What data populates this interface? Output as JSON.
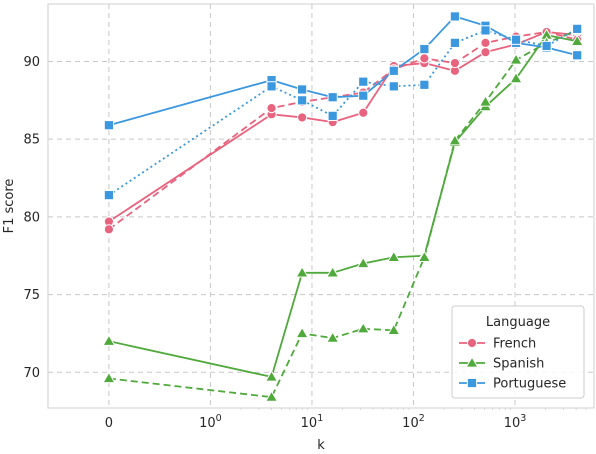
{
  "chart_data": {
    "type": "line",
    "xlabel": "k",
    "ylabel": "F1 score",
    "x_scale": "symlog",
    "xlim": [
      -0.6,
      6000
    ],
    "ylim": [
      67.7,
      93.7
    ],
    "grid": true,
    "x_ticks": [
      {
        "value": 0,
        "label": "0"
      },
      {
        "value": 1,
        "label": "10^0"
      },
      {
        "value": 10,
        "label": "10^1"
      },
      {
        "value": 100,
        "label": "10^2"
      },
      {
        "value": 1000,
        "label": "10^3"
      }
    ],
    "y_ticks": [
      70,
      75,
      80,
      85,
      90
    ],
    "legend": {
      "title": "Language",
      "position": "bottom-right",
      "entries": [
        {
          "name": "French",
          "color": "#e8637e",
          "marker": "circle"
        },
        {
          "name": "Spanish",
          "color": "#4fa93b",
          "marker": "triangle"
        },
        {
          "name": "Portuguese",
          "color": "#3b97de",
          "marker": "square"
        }
      ]
    },
    "series": [
      {
        "language": "French",
        "style": "solid",
        "color": "#e8637e",
        "marker": "circle",
        "x": [
          0,
          4,
          8,
          16,
          32,
          64,
          128,
          256,
          512,
          1024,
          2048,
          4096
        ],
        "y": [
          79.7,
          86.6,
          86.4,
          86.1,
          86.7,
          89.7,
          89.9,
          89.4,
          90.6,
          91.1,
          91.9,
          91.7
        ]
      },
      {
        "language": "French",
        "style": "dashed",
        "color": "#e8637e",
        "marker": "circle",
        "x": [
          0,
          4,
          8,
          16,
          32,
          64,
          128,
          256,
          512,
          1024,
          2048,
          4096
        ],
        "y": [
          79.2,
          87.0,
          87.4,
          87.7,
          88.0,
          89.5,
          90.2,
          89.9,
          91.2,
          91.6,
          91.9,
          91.4
        ]
      },
      {
        "language": "Spanish",
        "style": "solid",
        "color": "#4fa93b",
        "marker": "triangle",
        "x": [
          0,
          4,
          8,
          16,
          32,
          64,
          128,
          256,
          512,
          1024,
          2048,
          4096
        ],
        "y": [
          72.0,
          69.7,
          76.4,
          76.4,
          77.0,
          77.4,
          77.5,
          84.8,
          87.1,
          88.9,
          91.7,
          91.3
        ]
      },
      {
        "language": "Spanish",
        "style": "dashed",
        "color": "#4fa93b",
        "marker": "triangle",
        "x": [
          0,
          4,
          8,
          16,
          32,
          64,
          128,
          256,
          512,
          1024,
          2048,
          4096
        ],
        "y": [
          69.6,
          68.4,
          72.5,
          72.2,
          72.8,
          72.7,
          77.4,
          84.9,
          87.4,
          90.1,
          91.2,
          92.0
        ]
      },
      {
        "language": "Portuguese",
        "style": "solid",
        "color": "#3b97de",
        "marker": "square",
        "x": [
          0,
          4,
          8,
          16,
          32,
          64,
          128,
          256,
          512,
          1024,
          2048,
          4096
        ],
        "y": [
          85.9,
          88.8,
          88.2,
          87.7,
          87.8,
          89.4,
          90.8,
          92.9,
          92.3,
          91.2,
          90.9,
          90.4
        ]
      },
      {
        "language": "Portuguese",
        "style": "dotted",
        "color": "#3b97de",
        "marker": "square",
        "x": [
          0,
          4,
          8,
          16,
          32,
          64,
          128,
          256,
          512,
          1024,
          2048,
          4096
        ],
        "y": [
          81.4,
          88.4,
          87.5,
          86.5,
          88.7,
          88.4,
          88.5,
          91.2,
          92.0,
          91.4,
          91.0,
          92.1
        ]
      }
    ]
  }
}
